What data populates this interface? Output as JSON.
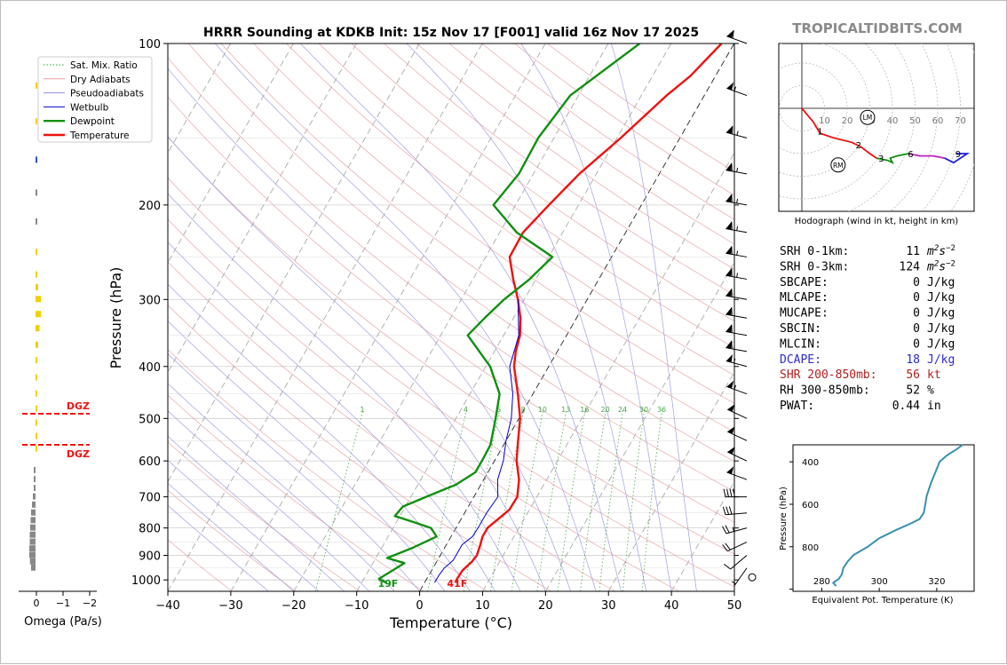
{
  "title": "HRRR Sounding at KDKB Init: 15z Nov 17 [F001] valid 16z Nov 17 2025",
  "watermark": "TROPICALTIDBITS.COM",
  "chart_data": [
    {
      "id": "skewt",
      "type": "line",
      "xlabel": "Temperature (°C)",
      "ylabel": "Pressure (hPa)",
      "xlim": [
        -40,
        50
      ],
      "ylim": [
        1050,
        100
      ],
      "yscale": "log",
      "x_ticks": [
        "−40",
        "−30",
        "−20",
        "−10",
        "0",
        "10",
        "20",
        "30",
        "40",
        "50"
      ],
      "x_tick_values": [
        -40,
        -30,
        -20,
        -10,
        0,
        10,
        20,
        30,
        40,
        50
      ],
      "y_ticks": [
        "100",
        "200",
        "300",
        "400",
        "500",
        "600",
        "700",
        "800",
        "900",
        "1000"
      ],
      "y_tick_values": [
        100,
        200,
        300,
        400,
        500,
        600,
        700,
        800,
        900,
        1000
      ],
      "legend": {
        "placement": "upper-left",
        "entries": [
          {
            "label": "Sat. Mix. Ratio",
            "color": "#2ca02c",
            "style": "dotted"
          },
          {
            "label": "Dry Adiabats",
            "color": "#e8a0a0",
            "style": "solid"
          },
          {
            "label": "Pseudoadiabats",
            "color": "#9090d8",
            "style": "solid"
          },
          {
            "label": "Wetbulb",
            "color": "#0000cc",
            "style": "solid"
          },
          {
            "label": "Dewpoint",
            "color": "#109010",
            "style": "solid"
          },
          {
            "label": "Temperature",
            "color": "#ee1111",
            "style": "solid"
          }
        ]
      },
      "series": [
        {
          "name": "Temperature",
          "color": "#ee1111",
          "points": [
            [
              1012,
              4.9
            ],
            [
              995,
              4.8
            ],
            [
              960,
              4.9
            ],
            [
              925,
              5.6
            ],
            [
              900,
              5.8
            ],
            [
              860,
              5.4
            ],
            [
              830,
              5.0
            ],
            [
              800,
              5.0
            ],
            [
              770,
              5.9
            ],
            [
              740,
              6.8
            ],
            [
              700,
              6.9
            ],
            [
              650,
              5.6
            ],
            [
              600,
              3.5
            ],
            [
              550,
              1.9
            ],
            [
              500,
              0.2
            ],
            [
              450,
              -2.4
            ],
            [
              400,
              -5.5
            ],
            [
              375,
              -6.6
            ],
            [
              350,
              -7.4
            ],
            [
              325,
              -8.9
            ],
            [
              300,
              -11.0
            ],
            [
              275,
              -13.6
            ],
            [
              250,
              -16.2
            ],
            [
              225,
              -16.3
            ],
            [
              200,
              -14.7
            ],
            [
              175,
              -12.7
            ],
            [
              150,
              -9.4
            ],
            [
              125,
              -6.0
            ],
            [
              115,
              -4.0
            ],
            [
              100,
              -2.0
            ]
          ]
        },
        {
          "name": "Dewpoint",
          "color": "#109010",
          "points": [
            [
              1012,
              -6.1
            ],
            [
              995,
              -7.6
            ],
            [
              960,
              -6.2
            ],
            [
              930,
              -5.0
            ],
            [
              910,
              -8.2
            ],
            [
              870,
              -5.0
            ],
            [
              830,
              -2.3
            ],
            [
              800,
              -4.0
            ],
            [
              780,
              -7.3
            ],
            [
              760,
              -10.8
            ],
            [
              730,
              -10.4
            ],
            [
              700,
              -7.6
            ],
            [
              665,
              -4.0
            ],
            [
              630,
              -2.0
            ],
            [
              600,
              -2.0
            ],
            [
              560,
              -2.1
            ],
            [
              500,
              -3.7
            ],
            [
              450,
              -5.3
            ],
            [
              400,
              -9.3
            ],
            [
              350,
              -15.7
            ],
            [
              325,
              -14.6
            ],
            [
              300,
              -13.2
            ],
            [
              275,
              -11.0
            ],
            [
              250,
              -9.4
            ],
            [
              225,
              -17.3
            ],
            [
              200,
              -23.5
            ],
            [
              175,
              -22.3
            ],
            [
              150,
              -22.5
            ],
            [
              125,
              -21.3
            ],
            [
              100,
              -15.0
            ]
          ]
        },
        {
          "name": "Wetbulb",
          "color": "#0000cc",
          "points": [
            [
              1012,
              1.6
            ],
            [
              980,
              1.6
            ],
            [
              950,
              1.8
            ],
            [
              920,
              2.5
            ],
            [
              900,
              2.5
            ],
            [
              860,
              2.5
            ],
            [
              830,
              3.4
            ],
            [
              800,
              3.5
            ],
            [
              750,
              3.5
            ],
            [
              700,
              3.8
            ],
            [
              650,
              2.2
            ],
            [
              600,
              1.4
            ],
            [
              550,
              0.0
            ],
            [
              500,
              -1.2
            ],
            [
              450,
              -3.2
            ],
            [
              400,
              -6.2
            ],
            [
              350,
              -7.6
            ],
            [
              300,
              -11.0
            ]
          ]
        }
      ],
      "surface_labels": [
        {
          "text": "19F",
          "color": "#109010"
        },
        {
          "text": "41F",
          "color": "#ee1111"
        }
      ],
      "mixing_ratio_labels": [
        "1",
        "4",
        "6",
        "8",
        "10",
        "13",
        "16",
        "20",
        "24",
        "30",
        "36"
      ],
      "wind_barbs": [
        {
          "p": 100,
          "dir": 290,
          "kt": 60
        },
        {
          "p": 125,
          "dir": 290,
          "kt": 55
        },
        {
          "p": 150,
          "dir": 285,
          "kt": 65
        },
        {
          "p": 175,
          "dir": 280,
          "kt": 65
        },
        {
          "p": 200,
          "dir": 280,
          "kt": 65
        },
        {
          "p": 225,
          "dir": 280,
          "kt": 65
        },
        {
          "p": 250,
          "dir": 280,
          "kt": 65
        },
        {
          "p": 275,
          "dir": 280,
          "kt": 65
        },
        {
          "p": 300,
          "dir": 280,
          "kt": 60
        },
        {
          "p": 325,
          "dir": 280,
          "kt": 60
        },
        {
          "p": 350,
          "dir": 280,
          "kt": 60
        },
        {
          "p": 375,
          "dir": 280,
          "kt": 60
        },
        {
          "p": 400,
          "dir": 285,
          "kt": 55
        },
        {
          "p": 450,
          "dir": 290,
          "kt": 55
        },
        {
          "p": 500,
          "dir": 295,
          "kt": 50
        },
        {
          "p": 550,
          "dir": 295,
          "kt": 50
        },
        {
          "p": 600,
          "dir": 295,
          "kt": 50
        },
        {
          "p": 650,
          "dir": 290,
          "kt": 50
        },
        {
          "p": 700,
          "dir": 270,
          "kt": 40
        },
        {
          "p": 750,
          "dir": 265,
          "kt": 30
        },
        {
          "p": 800,
          "dir": 255,
          "kt": 25
        },
        {
          "p": 850,
          "dir": 245,
          "kt": 20
        },
        {
          "p": 900,
          "dir": 230,
          "kt": 10
        },
        {
          "p": 950,
          "dir": 215,
          "kt": 5
        },
        {
          "p": 1000,
          "dir": 0,
          "kt": 0
        }
      ]
    },
    {
      "id": "omega",
      "type": "bar",
      "xlabel": "Omega (Pa/s)",
      "x_ticks": [
        "0",
        "−1",
        "−2"
      ],
      "x_tick_values": [
        0,
        -1,
        -2
      ],
      "dgz_label": "DGZ",
      "dgz_pressures": [
        490,
        560
      ],
      "values": [
        {
          "p": 120,
          "omega": 0.02,
          "color": "#f0d000"
        },
        {
          "p": 140,
          "omega": 0.02,
          "color": "#f0d000"
        },
        {
          "p": 165,
          "omega": 0.03,
          "color": "#3050c0"
        },
        {
          "p": 190,
          "omega": 0.06,
          "color": "#888888"
        },
        {
          "p": 215,
          "omega": 0.06,
          "color": "#888888"
        },
        {
          "p": 245,
          "omega": 0.02,
          "color": "#f0d000"
        },
        {
          "p": 270,
          "omega": 0.05,
          "color": "#f0d000"
        },
        {
          "p": 285,
          "omega": 0.12,
          "color": "#f0d000"
        },
        {
          "p": 300,
          "omega": 0.25,
          "color": "#f0d000"
        },
        {
          "p": 320,
          "omega": 0.25,
          "color": "#f0d000"
        },
        {
          "p": 340,
          "omega": 0.18,
          "color": "#f0d000"
        },
        {
          "p": 365,
          "omega": 0.12,
          "color": "#f0d000"
        },
        {
          "p": 390,
          "omega": 0.08,
          "color": "#f0d000"
        },
        {
          "p": 420,
          "omega": 0.05,
          "color": "#f0d000"
        },
        {
          "p": 450,
          "omega": 0.05,
          "color": "#f0d000"
        },
        {
          "p": 480,
          "omega": 0.05,
          "color": "#f0d000"
        },
        {
          "p": 510,
          "omega": 0.03,
          "color": "#f0d000"
        },
        {
          "p": 540,
          "omega": 0.03,
          "color": "#f0d000"
        },
        {
          "p": 570,
          "omega": 0.03,
          "color": "#f0d000"
        },
        {
          "p": 625,
          "omega": -0.05,
          "color": "#888888"
        },
        {
          "p": 650,
          "omega": -0.05,
          "color": "#888888"
        },
        {
          "p": 675,
          "omega": -0.08,
          "color": "#888888"
        },
        {
          "p": 700,
          "omega": -0.12,
          "color": "#888888"
        },
        {
          "p": 725,
          "omega": -0.16,
          "color": "#888888"
        },
        {
          "p": 750,
          "omega": -0.2,
          "color": "#888888"
        },
        {
          "p": 775,
          "omega": -0.22,
          "color": "#888888"
        },
        {
          "p": 800,
          "omega": -0.24,
          "color": "#888888"
        },
        {
          "p": 825,
          "omega": -0.26,
          "color": "#888888"
        },
        {
          "p": 850,
          "omega": -0.26,
          "color": "#888888"
        },
        {
          "p": 875,
          "omega": -0.28,
          "color": "#888888"
        },
        {
          "p": 900,
          "omega": -0.28,
          "color": "#888888"
        },
        {
          "p": 925,
          "omega": -0.25,
          "color": "#888888"
        },
        {
          "p": 950,
          "omega": -0.2,
          "color": "#888888"
        }
      ]
    },
    {
      "id": "hodograph",
      "type": "line",
      "caption": "Hodograph (wind in kt, height in km)",
      "ring_labels": [
        "10",
        "20",
        "30",
        "40",
        "50",
        "60",
        "70"
      ],
      "storm_markers": [
        {
          "label": "LM",
          "u": 29,
          "v": -4
        },
        {
          "label": "RM",
          "u": 16,
          "v": -25
        }
      ],
      "height_labels": [
        {
          "label": "1",
          "u": 8,
          "v": -10
        },
        {
          "label": "2",
          "u": 25,
          "v": -16
        },
        {
          "label": "3",
          "u": 35,
          "v": -22
        },
        {
          "label": "6",
          "u": 48,
          "v": -20
        },
        {
          "label": "9",
          "u": 69,
          "v": -20
        }
      ],
      "segments": [
        {
          "color": "#ee1111",
          "points": [
            [
              0,
              0
            ],
            [
              5,
              -6
            ],
            [
              8,
              -11
            ],
            [
              14,
              -13
            ],
            [
              22,
              -15
            ],
            [
              26,
              -17
            ],
            [
              30,
              -20
            ],
            [
              33,
              -22
            ]
          ]
        },
        {
          "color": "#109010",
          "points": [
            [
              33,
              -22
            ],
            [
              38,
              -23
            ],
            [
              40,
              -24
            ],
            [
              39,
              -22
            ],
            [
              42,
              -21
            ],
            [
              47,
              -20
            ]
          ]
        },
        {
          "color": "#c020c0",
          "points": [
            [
              47,
              -20
            ],
            [
              52,
              -21
            ],
            [
              58,
              -21
            ],
            [
              63,
              -22
            ]
          ]
        },
        {
          "color": "#2020dd",
          "points": [
            [
              63,
              -22
            ],
            [
              67,
              -24
            ],
            [
              70,
              -22
            ],
            [
              73,
              -20
            ],
            [
              68,
              -20
            ]
          ]
        }
      ]
    },
    {
      "id": "theta-e",
      "type": "line",
      "xlabel": "Equivalent Pot. Temperature (K)",
      "ylabel": "Pressure (hPa)",
      "x_ticks": [
        "280",
        "300",
        "320"
      ],
      "x_tick_values": [
        280,
        300,
        320
      ],
      "y_ticks": [
        "400",
        "600",
        "800"
      ],
      "y_tick_values": [
        400,
        600,
        800
      ],
      "xlim": [
        270,
        333
      ],
      "ylim": [
        1010,
        320
      ],
      "series": [
        {
          "name": "",
          "color": "#3a8fb0",
          "points": [
            [
              985,
              285
            ],
            [
              970,
              284
            ],
            [
              950,
              286
            ],
            [
              930,
              287
            ],
            [
              900,
              287.5
            ],
            [
              870,
              289
            ],
            [
              840,
              291
            ],
            [
              800,
              296
            ],
            [
              760,
              300
            ],
            [
              720,
              306
            ],
            [
              690,
              311
            ],
            [
              670,
              314
            ],
            [
              640,
              315.5
            ],
            [
              600,
              316
            ],
            [
              560,
              316.5
            ],
            [
              500,
              318
            ],
            [
              450,
              319.5
            ],
            [
              400,
              321
            ],
            [
              370,
              323.5
            ],
            [
              340,
              327
            ],
            [
              320,
              329
            ]
          ]
        }
      ]
    }
  ],
  "stats": [
    {
      "label": "SRH 0-1km:",
      "value": "11",
      "unit": "m2s-2",
      "color": "#000000"
    },
    {
      "label": "SRH 0-3km:",
      "value": "124",
      "unit": "m2s-2",
      "color": "#000000"
    },
    {
      "label": "SBCAPE:",
      "value": "0",
      "unit": "J/kg",
      "color": "#000000"
    },
    {
      "label": "MLCAPE:",
      "value": "0",
      "unit": "J/kg",
      "color": "#000000"
    },
    {
      "label": "MUCAPE:",
      "value": "0",
      "unit": "J/kg",
      "color": "#000000"
    },
    {
      "label": "SBCIN:",
      "value": "0",
      "unit": "J/kg",
      "color": "#000000"
    },
    {
      "label": "MLCIN:",
      "value": "0",
      "unit": "J/kg",
      "color": "#000000"
    },
    {
      "label": "DCAPE:",
      "value": "18",
      "unit": "J/kg",
      "color": "#2a2acc"
    },
    {
      "label": "SHR 200-850mb:",
      "value": "56",
      "unit": "kt",
      "color": "#b02020"
    },
    {
      "label": "RH 300-850mb:",
      "value": "52",
      "unit": "%",
      "color": "#000000"
    },
    {
      "label": "PWAT:",
      "value": "0.44",
      "unit": "in",
      "color": "#000000"
    }
  ]
}
